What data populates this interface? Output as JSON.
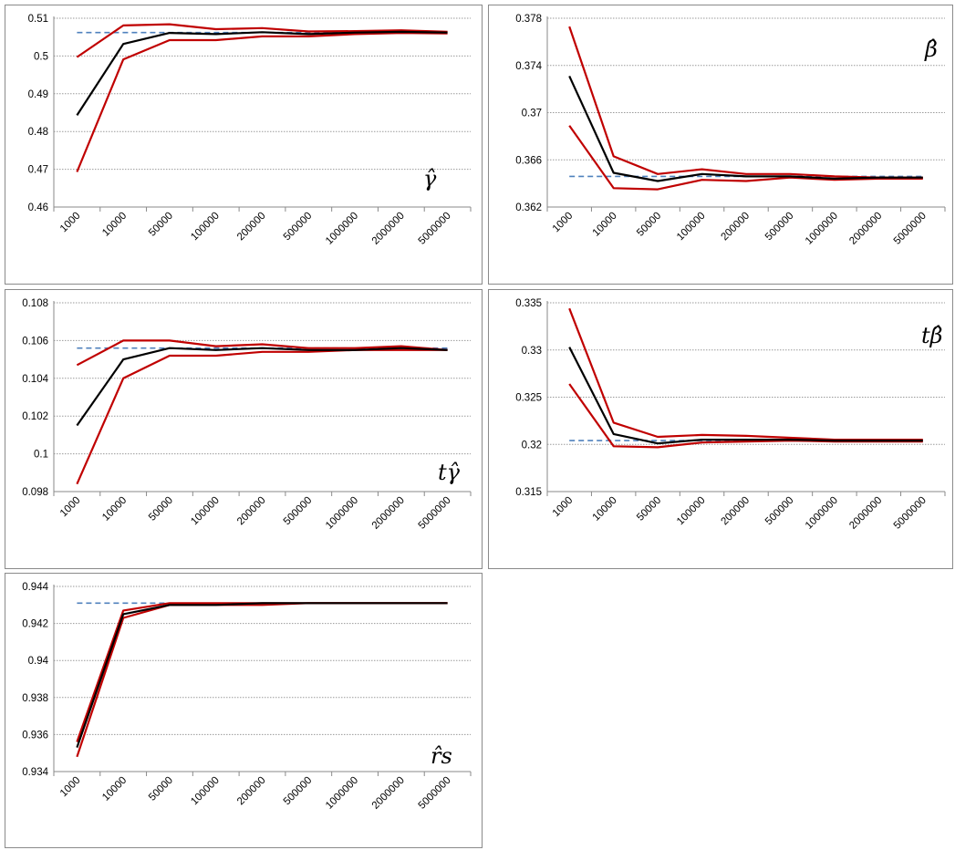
{
  "colors": {
    "estimate": "#000000",
    "bounds": "#c00000",
    "true_value": "#4f81bd",
    "grid": "#9a9a9a"
  },
  "chart_data": [
    {
      "type": "line",
      "label": "γ̂",
      "categories": [
        "1000",
        "10000",
        "50000",
        "100000",
        "200000",
        "500000",
        "1000000",
        "2000000",
        "5000000"
      ],
      "ylim": [
        0.46,
        0.51
      ],
      "yticks": [
        "0.46",
        "0.47",
        "0.48",
        "0.49",
        "0.5",
        "0.51"
      ],
      "grid": true,
      "series": [
        {
          "role": "estimate",
          "values": [
            0.4843,
            0.5032,
            0.5061,
            0.5058,
            0.5063,
            0.5058,
            0.5062,
            0.5064,
            0.5062
          ]
        },
        {
          "role": "upper",
          "values": [
            0.4997,
            0.5081,
            0.5084,
            0.5071,
            0.5074,
            0.5065,
            0.5066,
            0.5068,
            0.5064
          ]
        },
        {
          "role": "lower",
          "values": [
            0.4693,
            0.4991,
            0.5042,
            0.5042,
            0.5052,
            0.5052,
            0.5058,
            0.5061,
            0.506
          ]
        },
        {
          "role": "true",
          "values": [
            0.5062,
            0.5062,
            0.5062,
            0.5062,
            0.5062,
            0.5062,
            0.5062,
            0.5062,
            0.5062
          ]
        }
      ]
    },
    {
      "type": "line",
      "label": "β̂",
      "categories": [
        "1000",
        "10000",
        "50000",
        "100000",
        "200000",
        "500000",
        "1000000",
        "2000000",
        "5000000"
      ],
      "ylim": [
        0.362,
        0.378
      ],
      "yticks": [
        "0.362",
        "0.366",
        "0.37",
        "0.374",
        "0.378"
      ],
      "grid": true,
      "series": [
        {
          "role": "estimate",
          "values": [
            0.3731,
            0.3649,
            0.3642,
            0.3648,
            0.3646,
            0.3646,
            0.3644,
            0.3645,
            0.3645
          ]
        },
        {
          "role": "upper",
          "values": [
            0.3773,
            0.3663,
            0.3648,
            0.3652,
            0.3648,
            0.3648,
            0.3646,
            0.3645,
            0.3645
          ]
        },
        {
          "role": "lower",
          "values": [
            0.3689,
            0.3636,
            0.3635,
            0.3643,
            0.3642,
            0.3645,
            0.3643,
            0.3644,
            0.3644
          ]
        },
        {
          "role": "true",
          "values": [
            0.3646,
            0.3646,
            0.3646,
            0.3646,
            0.3646,
            0.3646,
            0.3646,
            0.3646,
            0.3646
          ]
        }
      ]
    },
    {
      "type": "line",
      "label": "tγ̂",
      "categories": [
        "1000",
        "10000",
        "50000",
        "100000",
        "200000",
        "500000",
        "1000000",
        "2000000",
        "5000000"
      ],
      "ylim": [
        0.098,
        0.108
      ],
      "yticks": [
        "0.098",
        "0.1",
        "0.102",
        "0.104",
        "0.106",
        "0.108"
      ],
      "grid": true,
      "series": [
        {
          "role": "estimate",
          "values": [
            0.1015,
            0.105,
            0.1056,
            0.1055,
            0.1056,
            0.1055,
            0.1055,
            0.1056,
            0.1055
          ]
        },
        {
          "role": "upper",
          "values": [
            0.1047,
            0.106,
            0.106,
            0.1057,
            0.1058,
            0.1056,
            0.1056,
            0.1057,
            0.1055
          ]
        },
        {
          "role": "lower",
          "values": [
            0.0984,
            0.104,
            0.1052,
            0.1052,
            0.1054,
            0.1054,
            0.1055,
            0.1055,
            0.1055
          ]
        },
        {
          "role": "true",
          "values": [
            0.1056,
            0.1056,
            0.1056,
            0.1056,
            0.1056,
            0.1056,
            0.1056,
            0.1056,
            0.1056
          ]
        }
      ]
    },
    {
      "type": "line",
      "label": "tβ̂",
      "categories": [
        "1000",
        "10000",
        "50000",
        "100000",
        "200000",
        "500000",
        "1000000",
        "2000000",
        "5000000"
      ],
      "ylim": [
        0.315,
        0.335
      ],
      "yticks": [
        "0.315",
        "0.32",
        "0.325",
        "0.33",
        "0.335"
      ],
      "grid": true,
      "series": [
        {
          "role": "estimate",
          "values": [
            0.3303,
            0.3211,
            0.3201,
            0.3205,
            0.3205,
            0.3205,
            0.3204,
            0.3204,
            0.3204
          ]
        },
        {
          "role": "upper",
          "values": [
            0.3344,
            0.3223,
            0.3208,
            0.321,
            0.3209,
            0.3207,
            0.3205,
            0.3205,
            0.3205
          ]
        },
        {
          "role": "lower",
          "values": [
            0.3264,
            0.3198,
            0.3197,
            0.3202,
            0.3203,
            0.3204,
            0.3203,
            0.3203,
            0.3203
          ]
        },
        {
          "role": "true",
          "values": [
            0.3204,
            0.3204,
            0.3204,
            0.3204,
            0.3204,
            0.3204,
            0.3204,
            0.3204,
            0.3204
          ]
        }
      ]
    },
    {
      "type": "line",
      "label": "r̂s",
      "categories": [
        "1000",
        "10000",
        "50000",
        "100000",
        "200000",
        "500000",
        "1000000",
        "2000000",
        "5000000"
      ],
      "ylim": [
        0.934,
        0.944
      ],
      "yticks": [
        "0.934",
        "0.936",
        "0.938",
        "0.94",
        "0.942",
        "0.944"
      ],
      "grid": true,
      "series": [
        {
          "role": "estimate",
          "values": [
            0.9353,
            0.9425,
            0.943,
            0.943,
            0.9431,
            0.9431,
            0.9431,
            0.9431,
            0.9431
          ]
        },
        {
          "role": "upper",
          "values": [
            0.9356,
            0.9427,
            0.9431,
            0.9431,
            0.9431,
            0.9431,
            0.9431,
            0.9431,
            0.9431
          ]
        },
        {
          "role": "lower",
          "values": [
            0.9348,
            0.9423,
            0.943,
            0.943,
            0.943,
            0.9431,
            0.9431,
            0.9431,
            0.9431
          ]
        },
        {
          "role": "true",
          "values": [
            0.9431,
            0.9431,
            0.9431,
            0.9431,
            0.9431,
            0.9431,
            0.9431,
            0.9431,
            0.9431
          ]
        }
      ]
    }
  ]
}
